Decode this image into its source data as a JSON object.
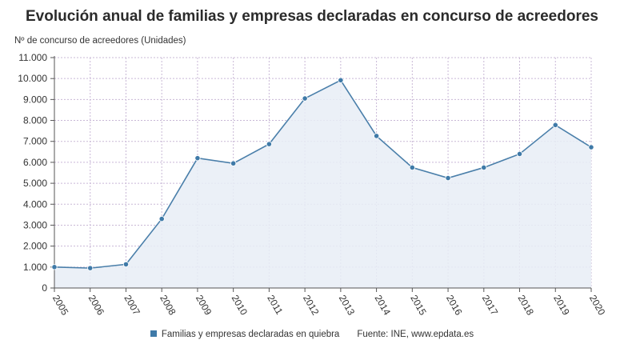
{
  "chart_data": {
    "type": "area",
    "title": "Evolución anual de familias y empresas declaradas en concurso de acreedores",
    "ylabel": "Nº de concurso de acreedores (Unidades)",
    "x": [
      "2005",
      "2006",
      "2007",
      "2008",
      "2009",
      "2010",
      "2011",
      "2012",
      "2013",
      "2014",
      "2015",
      "2016",
      "2017",
      "2018",
      "2019",
      "2020"
    ],
    "series": [
      {
        "name": "Familias y empresas declaradas en quiebra",
        "values": [
          1000,
          950,
          1130,
          3300,
          6200,
          5950,
          6870,
          9050,
          9920,
          7260,
          5750,
          5250,
          5750,
          6400,
          7780,
          6720
        ]
      }
    ],
    "ylim": [
      0,
      11000
    ],
    "yticks": [
      "0",
      "1.000",
      "2.000",
      "3.000",
      "4.000",
      "5.000",
      "6.000",
      "7.000",
      "8.000",
      "9.000",
      "10.000",
      "11.000"
    ],
    "grid": true,
    "legend_position": "bottom",
    "source": "Fuente: INE, www.epdata.es",
    "colors": {
      "line": "#4a7faa",
      "marker": "#3f7aa8",
      "fill": "#e8edf6",
      "grid": "#c9b8d6"
    }
  }
}
